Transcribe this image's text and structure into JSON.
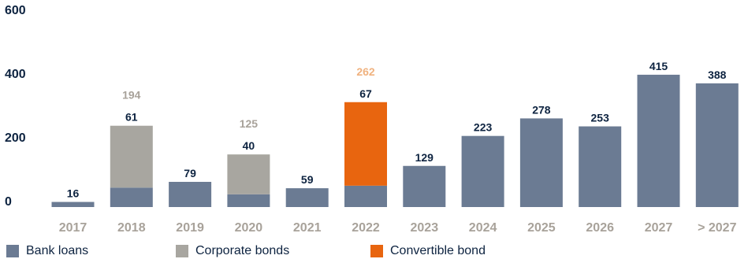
{
  "chart_data": {
    "type": "bar",
    "stacked": true,
    "ylim": [
      0,
      600
    ],
    "yticks": [
      0,
      200,
      400,
      600
    ],
    "categories": [
      "2017",
      "2018",
      "2019",
      "2020",
      "2021",
      "2022",
      "2023",
      "2024",
      "2025",
      "2026",
      "2027",
      "> 2027"
    ],
    "series": [
      {
        "name": "Bank loans",
        "color": "#6b7b93",
        "values": [
          16,
          61,
          79,
          40,
          59,
          67,
          129,
          223,
          278,
          253,
          415,
          388
        ]
      },
      {
        "name": "Corporate bonds",
        "color": "#a8a6a0",
        "values": [
          0,
          194,
          0,
          125,
          0,
          0,
          0,
          0,
          0,
          0,
          0,
          0
        ]
      },
      {
        "name": "Convertible bond",
        "color": "#e8650f",
        "values": [
          0,
          0,
          0,
          0,
          0,
          262,
          0,
          0,
          0,
          0,
          0,
          0
        ]
      }
    ],
    "grid": false,
    "legend_position": "bottom-left"
  },
  "legend": {
    "items": [
      {
        "label": "Bank loans",
        "color": "#6b7b93"
      },
      {
        "label": "Corporate bonds",
        "color": "#a8a6a0"
      },
      {
        "label": "Convertible bond",
        "color": "#e8650f"
      }
    ]
  },
  "colors": {
    "axis_text": "#0d2340",
    "category_text": "#a8a29a",
    "corporate_label": "#a8a29a",
    "convertible_label": "#f0b27f"
  }
}
